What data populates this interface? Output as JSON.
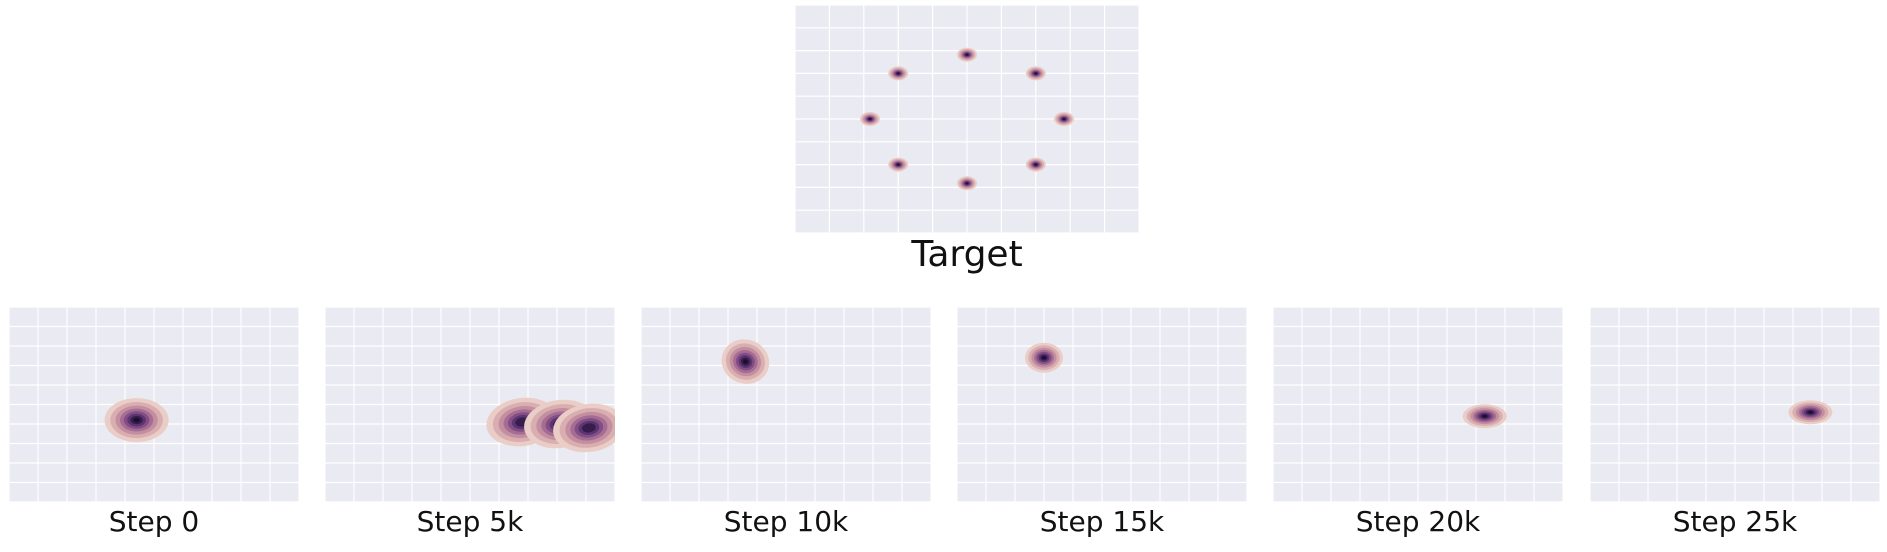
{
  "chart_data": [
    {
      "type": "heatmap",
      "title": "Target",
      "xlim": [
        -2.5,
        2.5
      ],
      "ylim": [
        -2.5,
        2.5
      ],
      "grid": true,
      "modes": [
        {
          "x": 0.0,
          "y": 1.41,
          "weight": 1.0
        },
        {
          "x": 1.0,
          "y": 1.0,
          "weight": 1.0
        },
        {
          "x": 1.41,
          "y": 0.0,
          "weight": 1.0
        },
        {
          "x": 1.0,
          "y": -1.0,
          "weight": 1.0
        },
        {
          "x": 0.0,
          "y": -1.41,
          "weight": 1.0
        },
        {
          "x": -1.0,
          "y": -1.0,
          "weight": 1.0
        },
        {
          "x": -1.41,
          "y": 0.0,
          "weight": 1.0
        },
        {
          "x": -1.0,
          "y": 1.0,
          "weight": 1.0
        }
      ]
    },
    {
      "type": "heatmap",
      "title": "Step 0",
      "xlim": [
        -2.5,
        2.5
      ],
      "ylim": [
        -2.5,
        2.5
      ],
      "grid": true,
      "modes": [
        {
          "x": -0.3,
          "y": -0.4,
          "weight": 1.0
        }
      ]
    },
    {
      "type": "heatmap",
      "title": "Step 5k",
      "xlim": [
        -2.5,
        2.5
      ],
      "ylim": [
        -2.5,
        2.5
      ],
      "grid": true,
      "modes": [
        {
          "x": 0.9,
          "y": -0.45,
          "weight": 0.8
        },
        {
          "x": 1.55,
          "y": -0.5,
          "weight": 0.9
        },
        {
          "x": 2.05,
          "y": -0.6,
          "weight": 0.6
        }
      ]
    },
    {
      "type": "heatmap",
      "title": "Step 10k",
      "xlim": [
        -2.5,
        2.5
      ],
      "ylim": [
        -2.5,
        2.5
      ],
      "grid": true,
      "modes": [
        {
          "x": -0.7,
          "y": 1.1,
          "weight": 1.0
        }
      ]
    },
    {
      "type": "heatmap",
      "title": "Step 15k",
      "xlim": [
        -2.5,
        2.5
      ],
      "ylim": [
        -2.5,
        2.5
      ],
      "grid": true,
      "modes": [
        {
          "x": -1.0,
          "y": 1.2,
          "weight": 1.0
        }
      ]
    },
    {
      "type": "heatmap",
      "title": "Step 20k",
      "xlim": [
        -2.5,
        2.5
      ],
      "ylim": [
        -2.5,
        2.5
      ],
      "grid": true,
      "modes": [
        {
          "x": 1.15,
          "y": -0.3,
          "weight": 1.0
        }
      ]
    },
    {
      "type": "heatmap",
      "title": "Step 25k",
      "xlim": [
        -2.5,
        2.5
      ],
      "ylim": [
        -2.5,
        2.5
      ],
      "grid": true,
      "modes": [
        {
          "x": 1.3,
          "y": -0.2,
          "weight": 1.0
        }
      ]
    }
  ],
  "colors": {
    "panel_background": "#eaeaf2",
    "grid": "#ffffff",
    "density_levels": [
      "#e9cdc6",
      "#d9aeb0",
      "#c38ea0",
      "#a66d94",
      "#834e85",
      "#5c3470",
      "#361d4d",
      "#1a0f2e"
    ]
  }
}
